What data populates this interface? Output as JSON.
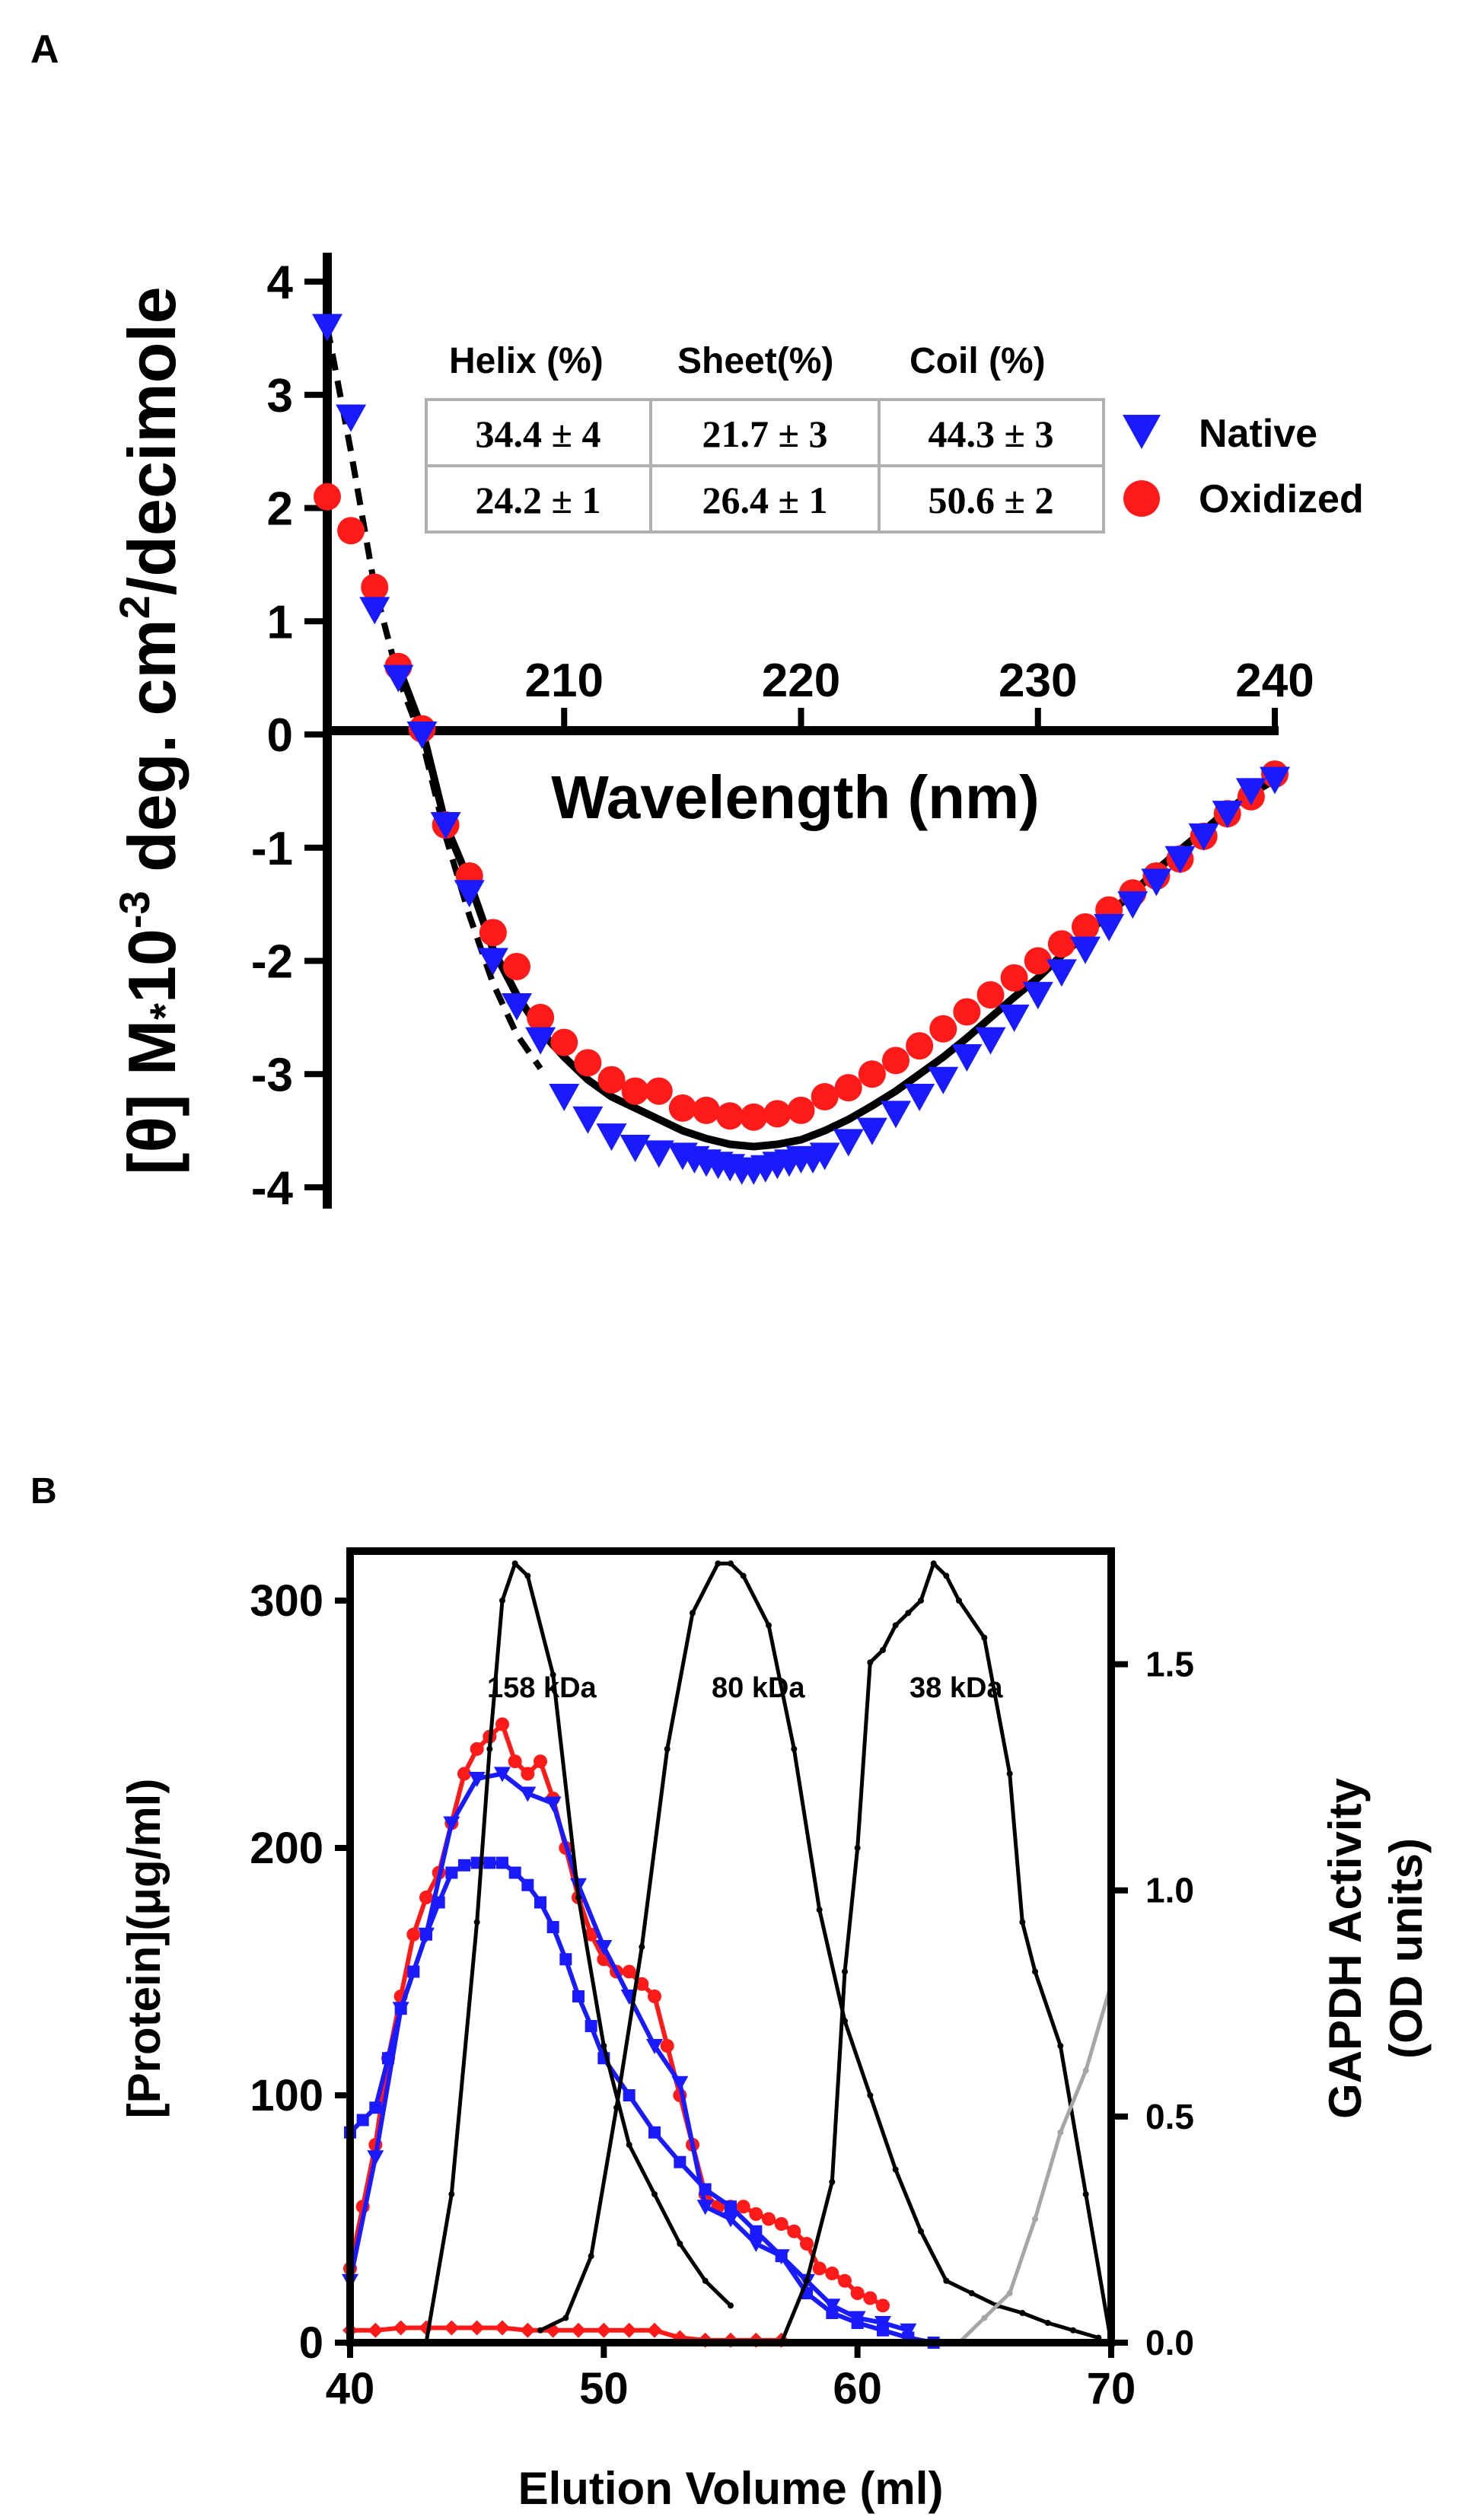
{
  "panels": {
    "a": {
      "label": "A"
    },
    "b": {
      "label": "B"
    }
  },
  "colors": {
    "native": "#1a1aff",
    "oxidized": "#ff1a1a",
    "fit": "#000000",
    "standards": "#000000",
    "grey_trace": "#a6a6a6",
    "table_border": "#b0b0b0"
  },
  "chart_data": [
    {
      "type": "scatter",
      "title": "",
      "xlabel": "Wavelength (nm)",
      "ylabel_parts": {
        "prefix": "[θ] M",
        "dot": "*",
        "ten": "10",
        "exp1": "-3",
        "mid": " deg. cm",
        "exp2": "2",
        "suffix": "/decimole"
      },
      "xlim": [
        200,
        240
      ],
      "ylim": [
        -4,
        4
      ],
      "x_ticks": [
        210,
        220,
        230,
        240
      ],
      "y_ticks": [
        4,
        3,
        2,
        1,
        0,
        -1,
        -2,
        -3,
        -4
      ],
      "legend": [
        "Native",
        "Oxidized"
      ],
      "series": [
        {
          "name": "Native",
          "marker": "triangle-down",
          "x": [
            200,
            201,
            202,
            203,
            204,
            205,
            206,
            207,
            208,
            209,
            210,
            211,
            212,
            213,
            214,
            215,
            215.5,
            216,
            216.5,
            217,
            217.5,
            218,
            218.5,
            219,
            219.5,
            220,
            220.5,
            221,
            222,
            223,
            224,
            225,
            226,
            227,
            228,
            229,
            230,
            231,
            232,
            233,
            234,
            235,
            236,
            237,
            238,
            239,
            240
          ],
          "y": [
            3.6,
            2.8,
            1.1,
            0.5,
            0.0,
            -0.8,
            -1.4,
            -2.0,
            -2.4,
            -2.7,
            -3.2,
            -3.4,
            -3.55,
            -3.65,
            -3.7,
            -3.72,
            -3.75,
            -3.78,
            -3.8,
            -3.82,
            -3.85,
            -3.85,
            -3.83,
            -3.8,
            -3.78,
            -3.75,
            -3.75,
            -3.72,
            -3.6,
            -3.5,
            -3.35,
            -3.2,
            -3.05,
            -2.85,
            -2.7,
            -2.5,
            -2.3,
            -2.1,
            -1.9,
            -1.7,
            -1.5,
            -1.3,
            -1.1,
            -0.9,
            -0.7,
            -0.5,
            -0.4
          ]
        },
        {
          "name": "Oxidized",
          "marker": "circle",
          "x": [
            200,
            201,
            202,
            203,
            204,
            205,
            206,
            207,
            208,
            209,
            210,
            211,
            212,
            213,
            214,
            215,
            216,
            217,
            218,
            219,
            220,
            221,
            222,
            223,
            224,
            225,
            226,
            227,
            228,
            229,
            230,
            231,
            232,
            233,
            234,
            235,
            236,
            237,
            238,
            239,
            240
          ],
          "y": [
            2.1,
            1.8,
            1.3,
            0.6,
            0.05,
            -0.8,
            -1.25,
            -1.75,
            -2.05,
            -2.5,
            -2.72,
            -2.9,
            -3.05,
            -3.15,
            -3.15,
            -3.3,
            -3.32,
            -3.37,
            -3.38,
            -3.35,
            -3.32,
            -3.2,
            -3.12,
            -3.0,
            -2.88,
            -2.75,
            -2.6,
            -2.45,
            -2.3,
            -2.15,
            -2.0,
            -1.85,
            -1.7,
            -1.55,
            -1.4,
            -1.25,
            -1.1,
            -0.9,
            -0.7,
            -0.55,
            -0.35
          ]
        }
      ],
      "fit_solid": {
        "x": [
          203,
          204,
          205,
          206,
          207,
          208,
          209,
          210,
          211,
          212,
          213,
          214,
          215,
          216,
          217,
          218,
          219,
          220,
          221,
          222,
          223,
          224,
          225,
          226,
          227,
          228,
          229,
          230,
          231,
          232,
          233,
          234,
          235,
          236,
          237,
          238,
          239,
          240
        ],
        "y": [
          0.6,
          0.05,
          -0.8,
          -1.3,
          -1.9,
          -2.3,
          -2.62,
          -2.85,
          -3.05,
          -3.2,
          -3.3,
          -3.4,
          -3.5,
          -3.57,
          -3.62,
          -3.64,
          -3.62,
          -3.58,
          -3.5,
          -3.4,
          -3.28,
          -3.15,
          -3.0,
          -2.85,
          -2.68,
          -2.5,
          -2.32,
          -2.15,
          -1.95,
          -1.77,
          -1.58,
          -1.4,
          -1.2,
          -1.02,
          -0.85,
          -0.67,
          -0.52,
          -0.4
        ]
      },
      "fit_dashed": {
        "x": [
          200,
          201,
          202,
          203,
          204,
          205,
          206,
          207,
          208,
          209
        ],
        "y": [
          3.6,
          2.5,
          1.3,
          0.5,
          -0.05,
          -0.9,
          -1.6,
          -2.2,
          -2.65,
          -2.95
        ]
      },
      "table": {
        "headers": [
          "Helix (%)",
          "Sheet(%)",
          "Coil (%)"
        ],
        "rows": [
          [
            "34.4 ± 4",
            "21.7 ± 3",
            "44.3 ± 3"
          ],
          [
            "24.2 ± 1",
            "26.4 ± 1",
            "50.6 ± 2"
          ]
        ]
      }
    },
    {
      "type": "line",
      "title": "",
      "xlabel": "Elution Volume (ml)",
      "ylabel_left": "[Protein](μg/ml)",
      "ylabel_right_line1": "GAPDH Activity",
      "ylabel_right_line2": "(OD units)",
      "xlim": [
        40,
        70
      ],
      "ylim_left": [
        0,
        320
      ],
      "ylim_right": [
        0,
        1.75
      ],
      "x_ticks": [
        40,
        50,
        60,
        70
      ],
      "y_ticks_left": [
        0,
        100,
        200,
        300
      ],
      "y_ticks_right": [
        "0.0",
        "0.5",
        "1.0",
        "1.5"
      ],
      "annotations": [
        "158 kDa",
        "80 kDa",
        "38 kDa"
      ],
      "series": [
        {
          "name": "Red protein",
          "color": "#ff1a1a",
          "marker": "circle",
          "x": [
            40,
            40.5,
            41,
            41.5,
            42,
            42.5,
            43,
            43.5,
            44,
            44.5,
            45,
            45.5,
            46,
            46.5,
            47,
            47.5,
            48,
            48.5,
            49,
            49.5,
            50,
            50.5,
            51,
            51.5,
            52,
            52.5,
            53,
            53.5,
            54,
            54.5,
            55,
            55.5,
            56,
            56.5,
            57,
            57.5,
            58,
            58.5,
            59,
            59.5,
            60,
            60.5,
            61
          ],
          "y": [
            30,
            55,
            80,
            115,
            140,
            165,
            180,
            190,
            210,
            230,
            240,
            245,
            250,
            235,
            230,
            235,
            220,
            200,
            180,
            165,
            155,
            150,
            150,
            145,
            140,
            120,
            100,
            80,
            60,
            55,
            55,
            55,
            52,
            50,
            48,
            45,
            40,
            30,
            28,
            25,
            20,
            18,
            15
          ]
        },
        {
          "name": "Red activity baseline",
          "color": "#ff1a1a",
          "marker": "diamond",
          "x": [
            40,
            41,
            42,
            43,
            44,
            45,
            46,
            47,
            48,
            49,
            50,
            51,
            52,
            53,
            54,
            55,
            56,
            57
          ],
          "y": [
            5,
            5,
            6,
            6,
            6,
            6,
            6,
            5,
            5,
            5,
            5,
            5,
            5,
            2,
            1,
            1,
            1,
            1
          ]
        },
        {
          "name": "Blue triangle",
          "color": "#1a1aff",
          "marker": "triangle-down",
          "x": [
            40,
            41,
            42,
            43,
            44,
            45,
            46,
            47,
            48,
            49,
            50,
            51,
            52,
            53,
            54,
            55,
            56,
            57,
            58,
            59,
            60,
            61,
            62
          ],
          "y": [
            25,
            75,
            135,
            165,
            210,
            228,
            230,
            222,
            218,
            185,
            160,
            140,
            120,
            105,
            55,
            50,
            40,
            35,
            25,
            15,
            10,
            8,
            5
          ]
        },
        {
          "name": "Blue square",
          "color": "#1a1aff",
          "marker": "square",
          "x": [
            40,
            40.5,
            41,
            41.5,
            42,
            42.5,
            43,
            43.5,
            44,
            44.5,
            45,
            45.5,
            46,
            46.5,
            47,
            47.5,
            48,
            48.5,
            49,
            49.5,
            50,
            51,
            52,
            53,
            54,
            55,
            56,
            57,
            58,
            59,
            60,
            61,
            62,
            63
          ],
          "y": [
            85,
            90,
            95,
            115,
            135,
            150,
            165,
            178,
            190,
            193,
            194,
            194,
            194,
            190,
            185,
            178,
            168,
            155,
            140,
            128,
            115,
            100,
            85,
            73,
            62,
            55,
            45,
            35,
            20,
            12,
            8,
            5,
            2,
            0
          ]
        },
        {
          "name": "158 kDa standard",
          "color": "#000000",
          "marker": "tick",
          "x": [
            43,
            44,
            45,
            45.5,
            46,
            46.5,
            47,
            48,
            49,
            50,
            51,
            52,
            53,
            54,
            55
          ],
          "y": [
            0,
            60,
            170,
            240,
            300,
            315,
            310,
            270,
            180,
            120,
            80,
            60,
            40,
            25,
            15
          ]
        },
        {
          "name": "80 kDa standard",
          "color": "#000000",
          "marker": "tick",
          "x": [
            47.5,
            48.5,
            49.5,
            50.5,
            51.5,
            52.5,
            53.5,
            54.5,
            55,
            55.5,
            56.5,
            57.5,
            58.5,
            59.5,
            60.5,
            61.5,
            62.5,
            63.5,
            64.5,
            65.5,
            66.5,
            67.5,
            68.5,
            69.5
          ],
          "y": [
            5,
            10,
            35,
            95,
            160,
            240,
            295,
            315,
            315,
            310,
            290,
            240,
            175,
            130,
            100,
            70,
            45,
            25,
            20,
            15,
            12,
            8,
            5,
            2
          ]
        },
        {
          "name": "38 kDa standard",
          "color": "#000000",
          "marker": "tick",
          "x": [
            57,
            58,
            59,
            59.5,
            60,
            60.5,
            61,
            61.5,
            62,
            62.5,
            63,
            63.5,
            64,
            65,
            66,
            66.5,
            67,
            68,
            69,
            70
          ],
          "y": [
            0,
            25,
            65,
            150,
            200,
            275,
            280,
            290,
            295,
            300,
            315,
            310,
            300,
            285,
            230,
            170,
            150,
            120,
            60,
            0
          ]
        },
        {
          "name": "Grey activity",
          "color": "#a6a6a6",
          "marker": "tick",
          "x": [
            62,
            63,
            64,
            65,
            66,
            67,
            68,
            69,
            70
          ],
          "y": [
            0,
            0,
            0,
            10,
            20,
            50,
            85,
            110,
            145
          ]
        }
      ]
    }
  ]
}
